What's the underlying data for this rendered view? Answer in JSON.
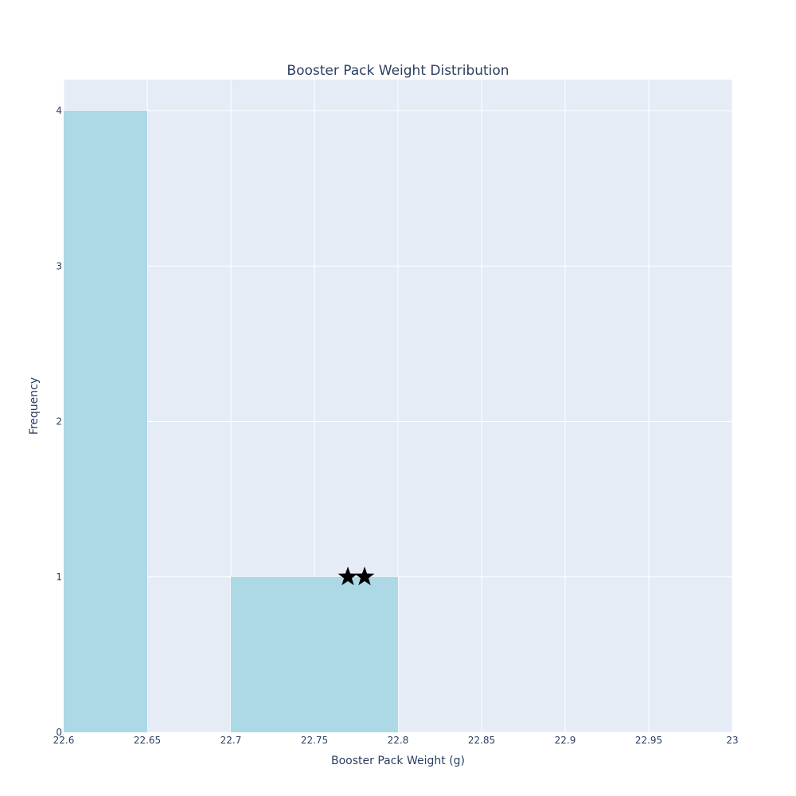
{
  "chart_data": {
    "type": "bar",
    "title": "Booster Pack Weight Distribution",
    "xlabel": "Booster Pack Weight (g)",
    "ylabel": "Frequency",
    "xlim": [
      22.6,
      23.0
    ],
    "ylim": [
      0,
      4.2
    ],
    "x_ticks": [
      "22.6",
      "22.65",
      "22.7",
      "22.75",
      "22.8",
      "22.85",
      "22.9",
      "22.95",
      "23"
    ],
    "x_tick_values": [
      22.6,
      22.65,
      22.7,
      22.75,
      22.8,
      22.85,
      22.9,
      22.95,
      23.0
    ],
    "y_ticks": [
      "0",
      "1",
      "2",
      "3",
      "4"
    ],
    "y_tick_values": [
      0,
      1,
      2,
      3,
      4
    ],
    "bins": [
      {
        "x0": 22.6,
        "x1": 22.65,
        "count": 4
      },
      {
        "x0": 22.7,
        "x1": 22.8,
        "count": 1
      }
    ],
    "markers": [
      {
        "x": 22.77,
        "y": 1,
        "symbol": "star"
      },
      {
        "x": 22.78,
        "y": 1,
        "symbol": "star"
      }
    ],
    "grid": true,
    "colors": {
      "bar": "#add8e6",
      "plot_bg": "#e5ecf6",
      "grid": "#ffffff",
      "text": "#2a3f5f",
      "marker": "#000000"
    }
  }
}
